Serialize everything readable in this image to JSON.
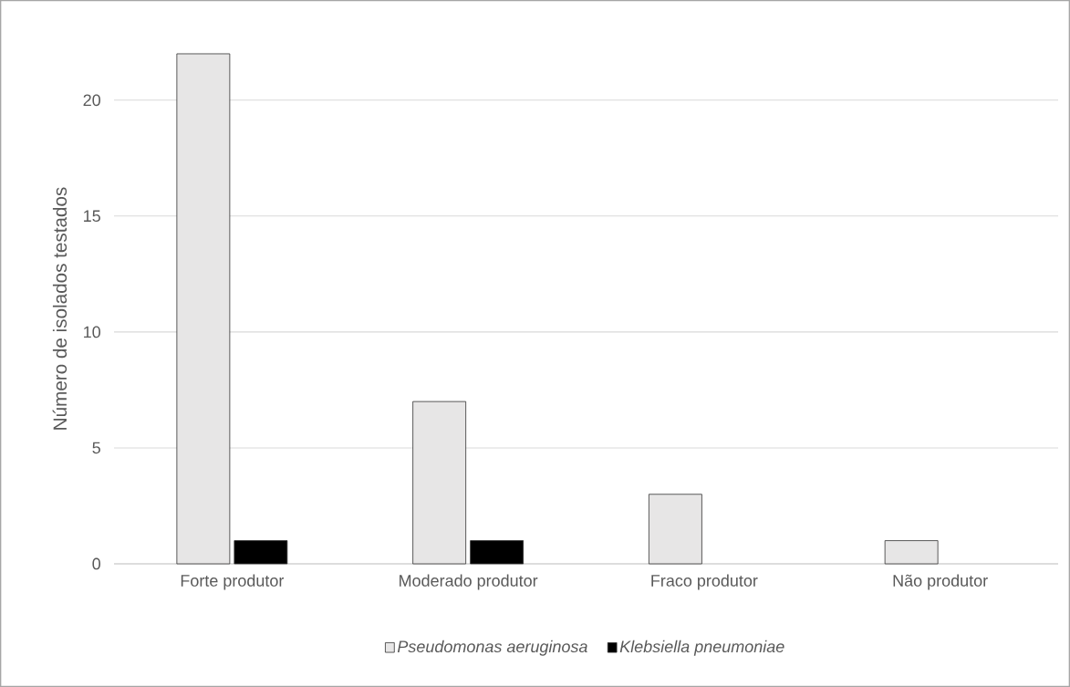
{
  "chart_data": {
    "type": "bar",
    "ylabel": "Número de isolados testados",
    "categories": [
      "Forte produtor",
      "Moderado produtor",
      "Fraco produtor",
      "Não produtor"
    ],
    "series": [
      {
        "name": "Pseudomonas aeruginosa",
        "color": "#e7e6e6",
        "values": [
          22,
          7,
          3,
          1
        ]
      },
      {
        "name": "Klebsiella pneumoniae",
        "color": "#000000",
        "values": [
          1,
          1,
          null,
          null
        ]
      }
    ],
    "ylim": [
      0,
      22
    ],
    "yticks": [
      0,
      5,
      10,
      15,
      20
    ],
    "grid": "y",
    "legend": "bottom"
  }
}
